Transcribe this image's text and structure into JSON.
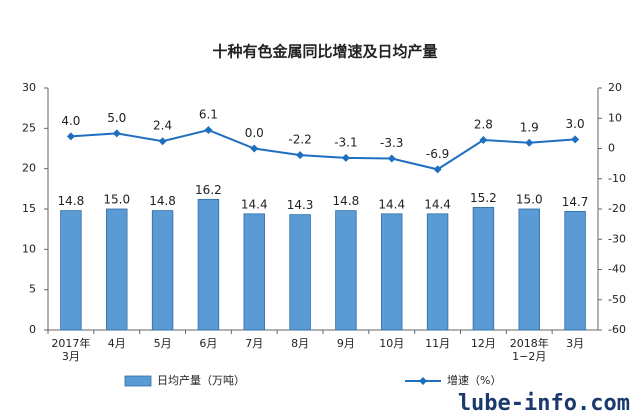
{
  "chart_data": {
    "type": "bar-line",
    "title": "十种有色金属同比增速及日均产量",
    "categories": [
      "2017年\n3月",
      "4月",
      "5月",
      "6月",
      "7月",
      "8月",
      "9月",
      "10月",
      "11月",
      "12月",
      "2018年\n1−2月",
      "3月"
    ],
    "series": [
      {
        "name": "日均产量（万吨）",
        "type": "bar",
        "color": "#5b9bd5",
        "values": [
          14.8,
          15.0,
          14.8,
          16.2,
          14.4,
          14.3,
          14.8,
          14.4,
          14.4,
          15.2,
          15.0,
          14.7
        ],
        "value_labels": [
          "14.8",
          "15.0",
          "14.8",
          "16.2",
          "14.4",
          "14.3",
          "14.8",
          "14.4",
          "14.4",
          "15.2",
          "15.0",
          "14.7"
        ]
      },
      {
        "name": "增速（%）",
        "type": "line",
        "axis": "y2",
        "color": "#1f6fc0",
        "values": [
          4.0,
          5.0,
          2.4,
          6.1,
          0.0,
          -2.2,
          -3.1,
          -3.3,
          -6.9,
          2.8,
          1.9,
          3.0
        ],
        "value_labels": [
          "4.0",
          "5.0",
          "2.4",
          "6.1",
          "0.0",
          "-2.2",
          "-3.1",
          "-3.3",
          "-6.9",
          "2.8",
          "1.9",
          "3.0"
        ]
      }
    ],
    "ylim": [
      0,
      30
    ],
    "yticks": [
      0,
      5,
      10,
      15,
      20,
      25,
      30
    ],
    "y2lim": [
      -60,
      20
    ],
    "y2ticks": [
      -60,
      -50,
      -40,
      -30,
      -20,
      -10,
      0,
      10,
      20
    ],
    "legend": "bottom",
    "watermark": "lube-info.com"
  }
}
